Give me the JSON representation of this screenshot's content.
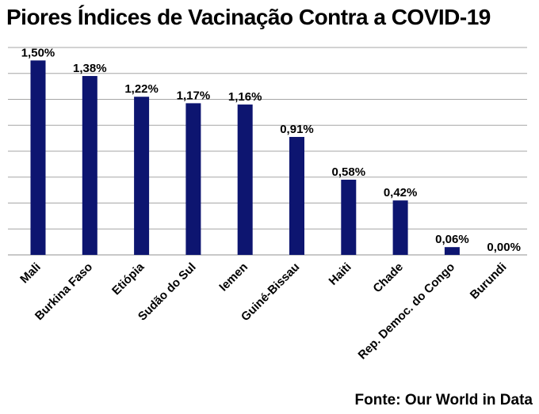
{
  "chart_data": {
    "type": "bar",
    "title": "Piores Índices de Vacinação Contra a COVID-19",
    "source": "Fonte: Our World in Data",
    "categories": [
      "Mali",
      "Burkina Faso",
      "Etiópia",
      "Sudão do Sul",
      "Iemen",
      "Guiné-Bissau",
      "Haiti",
      "Chade",
      "Rep. Democ. do Congo",
      "Burundi"
    ],
    "values": [
      1.5,
      1.38,
      1.22,
      1.17,
      1.16,
      0.91,
      0.58,
      0.42,
      0.06,
      0.0
    ],
    "value_labels": [
      "1,50%",
      "1,38%",
      "1,22%",
      "1,17%",
      "1,16%",
      "0,91%",
      "0,58%",
      "0,42%",
      "0,06%",
      "0,00%"
    ],
    "ylim": [
      0,
      1.6
    ],
    "grid": true,
    "legend": "none",
    "bar_color": "#0d1570",
    "grid_color": "#a6a6a6"
  }
}
